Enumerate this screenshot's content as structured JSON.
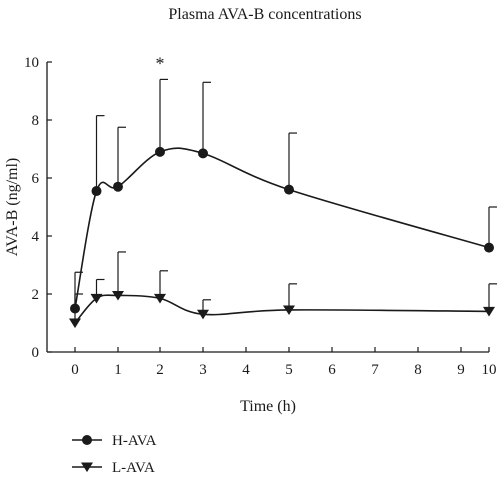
{
  "chart_data": {
    "type": "line",
    "title": "Plasma AVA-B concentrations",
    "xlabel": "Time (h)",
    "ylabel": "AVA-B (ng/ml)",
    "xlim": [
      0,
      10
    ],
    "ylim": [
      0,
      10
    ],
    "x_scale": "broken",
    "xticks": [
      0,
      1,
      2,
      3,
      4,
      5,
      6,
      7,
      8,
      9,
      10
    ],
    "xtick_labels": [
      "0",
      "1",
      "2",
      "3",
      "4",
      "5",
      "6",
      "7",
      "8",
      "9",
      "10"
    ],
    "yticks": [
      0,
      2,
      4,
      6,
      8,
      10
    ],
    "ytick_labels": [
      "0",
      "2",
      "4",
      "6",
      "8",
      "10"
    ],
    "grid": false,
    "legend_position": "bottom-left",
    "annotations": [
      {
        "text": "*",
        "x": 2
      }
    ],
    "series": [
      {
        "name": "H-AVA",
        "marker": "circle",
        "color": "#1a1a1a",
        "x": [
          0,
          0.5,
          1,
          2,
          3,
          5,
          10
        ],
        "y": [
          1.5,
          5.55,
          5.7,
          6.9,
          6.85,
          5.6,
          3.6
        ],
        "error_upper": [
          2.75,
          8.15,
          7.75,
          9.4,
          9.3,
          7.55,
          5.0
        ]
      },
      {
        "name": "L-AVA",
        "marker": "triangle-down",
        "color": "#1a1a1a",
        "x": [
          0,
          0.5,
          1,
          2,
          3,
          5,
          10
        ],
        "y": [
          1.0,
          1.85,
          1.95,
          1.85,
          1.3,
          1.45,
          1.4
        ],
        "error_upper": [
          2.0,
          2.5,
          3.45,
          2.8,
          1.8,
          2.35,
          2.35
        ]
      }
    ]
  }
}
